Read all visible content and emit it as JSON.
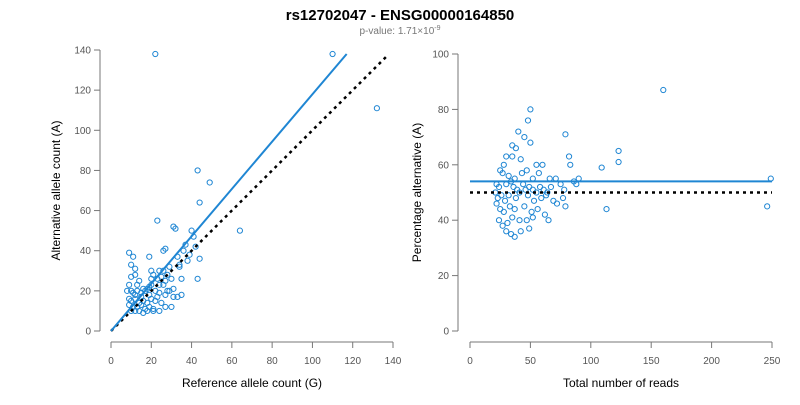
{
  "header": {
    "title": "rs12702047 - ENSG00000164850",
    "pvalue_prefix": "p-value: 1.71×10",
    "pvalue_exponent": "-9"
  },
  "colors": {
    "accent": "#1f86d3",
    "reference": "#000000",
    "axis": "#777777"
  },
  "chart_data": [
    {
      "type": "scatter",
      "xlabel": "Reference allele count (G)",
      "ylabel": "Alternative allele count (A)",
      "xlim": [
        0,
        140
      ],
      "ylim": [
        0,
        140
      ],
      "xticks": [
        "0",
        "20",
        "40",
        "60",
        "80",
        "100",
        "120",
        "140"
      ],
      "yticks": [
        "0",
        "20",
        "40",
        "60",
        "80",
        "100",
        "120",
        "140"
      ],
      "grid": false,
      "fit_line": {
        "x": [
          0,
          117
        ],
        "y": [
          0,
          138
        ]
      },
      "reference_line": {
        "x": [
          0,
          137
        ],
        "y": [
          0,
          137
        ]
      },
      "points": [
        [
          22,
          138
        ],
        [
          110,
          138
        ],
        [
          132,
          111
        ],
        [
          43,
          80
        ],
        [
          49,
          74
        ],
        [
          44,
          64
        ],
        [
          23,
          55
        ],
        [
          64,
          50
        ],
        [
          31,
          52
        ],
        [
          32,
          51
        ],
        [
          40,
          50
        ],
        [
          41,
          47
        ],
        [
          9,
          39
        ],
        [
          11,
          37
        ],
        [
          27,
          41
        ],
        [
          26,
          40
        ],
        [
          37,
          43
        ],
        [
          36,
          40
        ],
        [
          19,
          37
        ],
        [
          33,
          37
        ],
        [
          10,
          33
        ],
        [
          12,
          31
        ],
        [
          20,
          30
        ],
        [
          24,
          30
        ],
        [
          29,
          32
        ],
        [
          34,
          33
        ],
        [
          44,
          36
        ],
        [
          38,
          35
        ],
        [
          42,
          42
        ],
        [
          10,
          27
        ],
        [
          12,
          28
        ],
        [
          14,
          25
        ],
        [
          21,
          28
        ],
        [
          23,
          26
        ],
        [
          25,
          27
        ],
        [
          27,
          25
        ],
        [
          30,
          26
        ],
        [
          35,
          26
        ],
        [
          43,
          26
        ],
        [
          9,
          23
        ],
        [
          13,
          23
        ],
        [
          16,
          21
        ],
        [
          18,
          21
        ],
        [
          19,
          22
        ],
        [
          20,
          23
        ],
        [
          24,
          23
        ],
        [
          26,
          23
        ],
        [
          28,
          20
        ],
        [
          31,
          21
        ],
        [
          8,
          20
        ],
        [
          10,
          20
        ],
        [
          11,
          19
        ],
        [
          13,
          20
        ],
        [
          15,
          19
        ],
        [
          17,
          20
        ],
        [
          19,
          18
        ],
        [
          22,
          20
        ],
        [
          24,
          19
        ],
        [
          27,
          18
        ],
        [
          29,
          20
        ],
        [
          31,
          17
        ],
        [
          33,
          17
        ],
        [
          35,
          18
        ],
        [
          9,
          16
        ],
        [
          10,
          15
        ],
        [
          12,
          16
        ],
        [
          14,
          14
        ],
        [
          16,
          15
        ],
        [
          18,
          14
        ],
        [
          20,
          16
        ],
        [
          22,
          15
        ],
        [
          25,
          14
        ],
        [
          9,
          13
        ],
        [
          11,
          12
        ],
        [
          13,
          12
        ],
        [
          15,
          13
        ],
        [
          17,
          11
        ],
        [
          19,
          12
        ],
        [
          21,
          11
        ],
        [
          10,
          10
        ],
        [
          12,
          10
        ],
        [
          14,
          10
        ],
        [
          16,
          9
        ],
        [
          18,
          10
        ],
        [
          21,
          10
        ],
        [
          24,
          10
        ],
        [
          27,
          12
        ],
        [
          30,
          12
        ],
        [
          34,
          32
        ],
        [
          39,
          38
        ],
        [
          26,
          30
        ],
        [
          15,
          17
        ],
        [
          23,
          17
        ],
        [
          28,
          28
        ],
        [
          20,
          26
        ],
        [
          12,
          18
        ]
      ]
    },
    {
      "type": "scatter",
      "xlabel": "Total number of reads",
      "ylabel": "Percentage alternative (A)",
      "xlim": [
        0,
        250
      ],
      "ylim": [
        0,
        100
      ],
      "xticks": [
        "0",
        "50",
        "100",
        "150",
        "200",
        "250"
      ],
      "yticks": [
        "0",
        "20",
        "40",
        "60",
        "80",
        "100"
      ],
      "grid": false,
      "fit_line": {
        "x": [
          0,
          250
        ],
        "y": [
          54,
          54
        ]
      },
      "reference_line": {
        "x": [
          0,
          250
        ],
        "y": [
          50,
          50
        ]
      },
      "points": [
        [
          160,
          87
        ],
        [
          50,
          80
        ],
        [
          48,
          76
        ],
        [
          40,
          72
        ],
        [
          79,
          71
        ],
        [
          123,
          65
        ],
        [
          45,
          70
        ],
        [
          50,
          68
        ],
        [
          35,
          67
        ],
        [
          38,
          66
        ],
        [
          28,
          60
        ],
        [
          30,
          63
        ],
        [
          35,
          63
        ],
        [
          42,
          62
        ],
        [
          55,
          60
        ],
        [
          60,
          60
        ],
        [
          82,
          63
        ],
        [
          83,
          60
        ],
        [
          109,
          59
        ],
        [
          123,
          61
        ],
        [
          25,
          58
        ],
        [
          27,
          57
        ],
        [
          32,
          56
        ],
        [
          37,
          55
        ],
        [
          43,
          57
        ],
        [
          47,
          58
        ],
        [
          52,
          55
        ],
        [
          57,
          57
        ],
        [
          66,
          55
        ],
        [
          71,
          55
        ],
        [
          90,
          55
        ],
        [
          88,
          53
        ],
        [
          22,
          53
        ],
        [
          24,
          52
        ],
        [
          30,
          53
        ],
        [
          34,
          54
        ],
        [
          36,
          52
        ],
        [
          39,
          51
        ],
        [
          44,
          53
        ],
        [
          46,
          51
        ],
        [
          49,
          52
        ],
        [
          52,
          51
        ],
        [
          55,
          50
        ],
        [
          58,
          52
        ],
        [
          61,
          51
        ],
        [
          64,
          50
        ],
        [
          67,
          52
        ],
        [
          75,
          53
        ],
        [
          78,
          51
        ],
        [
          86,
          54
        ],
        [
          21,
          50
        ],
        [
          23,
          48
        ],
        [
          26,
          49
        ],
        [
          29,
          47
        ],
        [
          32,
          49
        ],
        [
          38,
          48
        ],
        [
          41,
          50
        ],
        [
          48,
          49
        ],
        [
          53,
          47
        ],
        [
          59,
          48
        ],
        [
          63,
          49
        ],
        [
          69,
          47
        ],
        [
          72,
          46
        ],
        [
          77,
          48
        ],
        [
          22,
          46
        ],
        [
          25,
          44
        ],
        [
          28,
          43
        ],
        [
          33,
          45
        ],
        [
          37,
          44
        ],
        [
          45,
          45
        ],
        [
          51,
          43
        ],
        [
          56,
          44
        ],
        [
          62,
          42
        ],
        [
          79,
          45
        ],
        [
          113,
          44
        ],
        [
          24,
          40
        ],
        [
          27,
          38
        ],
        [
          31,
          39
        ],
        [
          35,
          41
        ],
        [
          41,
          40
        ],
        [
          47,
          40
        ],
        [
          52,
          41
        ],
        [
          65,
          40
        ],
        [
          30,
          36
        ],
        [
          34,
          35
        ],
        [
          37,
          34
        ],
        [
          42,
          36
        ],
        [
          49,
          37
        ],
        [
          246,
          45
        ],
        [
          249,
          55
        ]
      ]
    }
  ]
}
